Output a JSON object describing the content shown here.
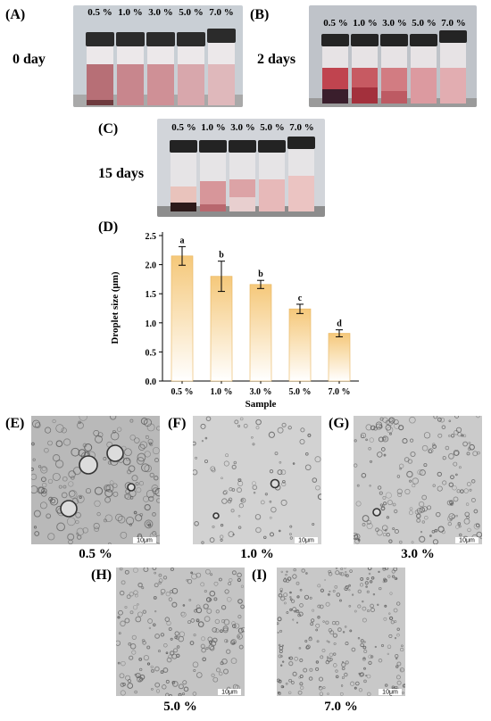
{
  "panels": {
    "A": {
      "label": "(A)",
      "day": "0 day"
    },
    "B": {
      "label": "(B)",
      "day": "2 days"
    },
    "C": {
      "label": "(C)",
      "day": "15 days"
    },
    "D": {
      "label": "(D)"
    },
    "E": {
      "label": "(E)",
      "caption": "0.5 %",
      "scale": "10μm"
    },
    "F": {
      "label": "(F)",
      "caption": "1.0 %",
      "scale": "10μm"
    },
    "G": {
      "label": "(G)",
      "caption": "3.0 %",
      "scale": "10μm"
    },
    "H": {
      "label": "(H)",
      "caption": "5.0 %",
      "scale": "10μm"
    },
    "I": {
      "label": "(I)",
      "caption": "7.0 %",
      "scale": "10μm"
    }
  },
  "concentrations": [
    "0.5 %",
    "1.0 %",
    "3.0 %",
    "5.0 %",
    "7.0 %"
  ],
  "chart_data": {
    "type": "bar",
    "title": "",
    "xlabel": "Sample",
    "ylabel": "Droplet size (μm)",
    "categories": [
      "0.5 %",
      "1.0 %",
      "3.0 %",
      "5.0 %",
      "7.0 %"
    ],
    "values": [
      2.15,
      1.8,
      1.66,
      1.24,
      0.82
    ],
    "errors": [
      0.16,
      0.26,
      0.07,
      0.08,
      0.06
    ],
    "significance_letters": [
      "a",
      "b",
      "b",
      "c",
      "d"
    ],
    "ylim": [
      0,
      2.5
    ],
    "yticks": [
      "0.0",
      "0.5",
      "1.0",
      "1.5",
      "2.0",
      "2.5"
    ],
    "bar_gradient": [
      "#f5c87a",
      "#ffffff"
    ],
    "grid": false
  }
}
